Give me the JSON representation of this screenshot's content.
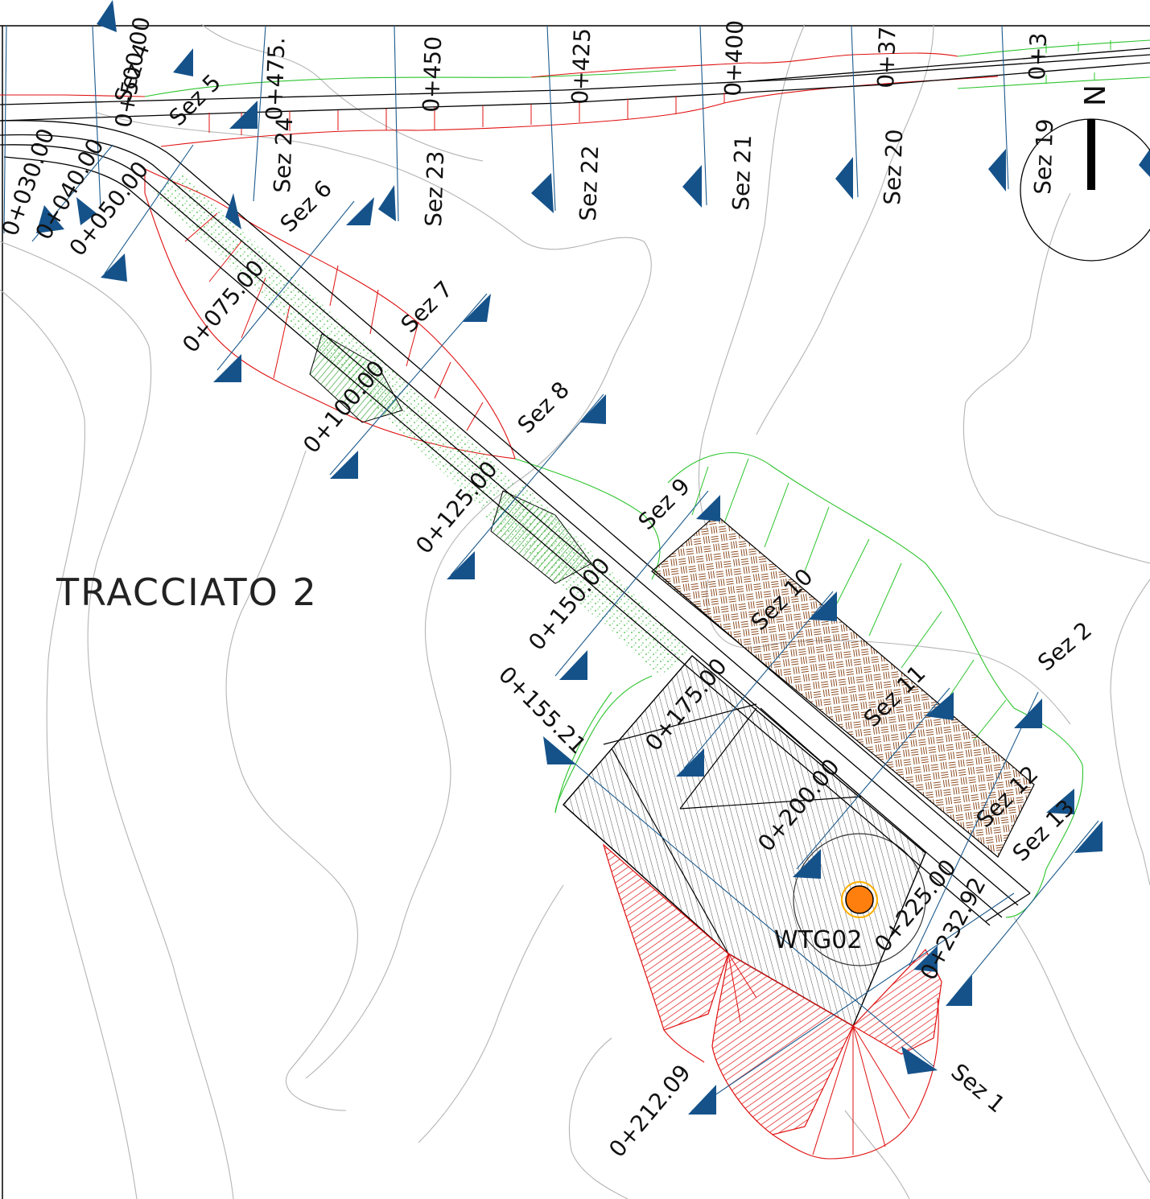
{
  "map": {
    "title": "TRACCIATO 2",
    "turbine_label": "WTG02",
    "north_label": "N",
    "colors": {
      "fill_cut": "#e01010",
      "fill_embankment": "#2cc42c",
      "road_edges": "#000000",
      "section_lines": "#1c5a8c",
      "section_arrows": "#15528a",
      "turbine_marker": "#ff7f0e",
      "paving_hatch": "#8b4a1e",
      "contours": "#b4b4b4"
    },
    "road_chainages": [
      "0+030.00",
      "0+040.00",
      "0+050.00",
      "0+075.00",
      "0+100.00",
      "0+125.00",
      "0+150.00",
      "0+155.21",
      "0+175.00",
      "0+200.00",
      "0+212.09",
      "0+225.00",
      "0+232.92"
    ],
    "road_sections": [
      "Sez 1",
      "Sez 2",
      "Sez 4",
      "Sez 5",
      "Sez 6",
      "Sez 7",
      "Sez 8",
      "Sez 9",
      "Sez 10",
      "Sez 11",
      "Sez 12",
      "Sez 13"
    ],
    "main_road_chainages": [
      "0+500.00",
      "0+475.",
      "0+450",
      "0+425",
      "0+400",
      "0+37",
      "0+3"
    ],
    "main_road_sections": [
      "Sez 24",
      "Sez 23",
      "Sez 22",
      "Sez 21",
      "Sez 20",
      "Sez 19"
    ]
  }
}
